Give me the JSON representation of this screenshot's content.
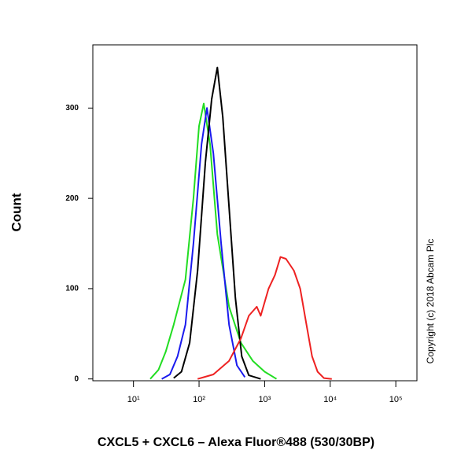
{
  "chart_data": {
    "type": "line",
    "ylabel": "Count",
    "xlabel": "CXCL5 + CXCL6 – Alexa Fluor®488 (530/30BP)",
    "side_note": "Copyright (c) 2018 Abcam Plc",
    "xscale": "log",
    "xlim": [
      2.4,
      210000
    ],
    "ylim": [
      -2,
      370
    ],
    "xticks": [
      {
        "value": 10,
        "label": "10¹"
      },
      {
        "value": 100,
        "label": "10²"
      },
      {
        "value": 1000,
        "label": "10³"
      },
      {
        "value": 10000,
        "label": "10⁴"
      },
      {
        "value": 100000,
        "label": "10⁵"
      }
    ],
    "yticks": [
      0,
      100,
      200,
      300
    ],
    "series": [
      {
        "color": "#22dd22",
        "x": [
          18,
          24,
          31,
          41,
          62,
          82,
          100,
          118,
          147,
          190,
          287,
          435,
          659,
          1000,
          1517
        ],
        "values": [
          0,
          10,
          30,
          60,
          110,
          200,
          280,
          305,
          260,
          160,
          80,
          40,
          20,
          8,
          0
        ]
      },
      {
        "color": "#1a1aee",
        "x": [
          27,
          36,
          47,
          62,
          82,
          109,
          132,
          165,
          217,
          287,
          378,
          500
        ],
        "values": [
          0,
          5,
          25,
          60,
          150,
          260,
          300,
          250,
          150,
          60,
          15,
          2
        ]
      },
      {
        "color": "#000000",
        "x": [
          41,
          54,
          72,
          95,
          125,
          156,
          190,
          230,
          287,
          358,
          448,
          574,
          871
        ],
        "values": [
          1,
          8,
          40,
          120,
          240,
          310,
          345,
          290,
          190,
          90,
          25,
          4,
          0
        ]
      },
      {
        "color": "#ee2222",
        "x": [
          95,
          165,
          287,
          435,
          574,
          758,
          871,
          1148,
          1434,
          1742,
          2115,
          2791,
          3485,
          4350,
          5290,
          6420,
          8010,
          10570
        ],
        "values": [
          0,
          5,
          20,
          45,
          70,
          80,
          70,
          100,
          115,
          135,
          133,
          120,
          100,
          60,
          25,
          8,
          1,
          0
        ]
      }
    ]
  }
}
